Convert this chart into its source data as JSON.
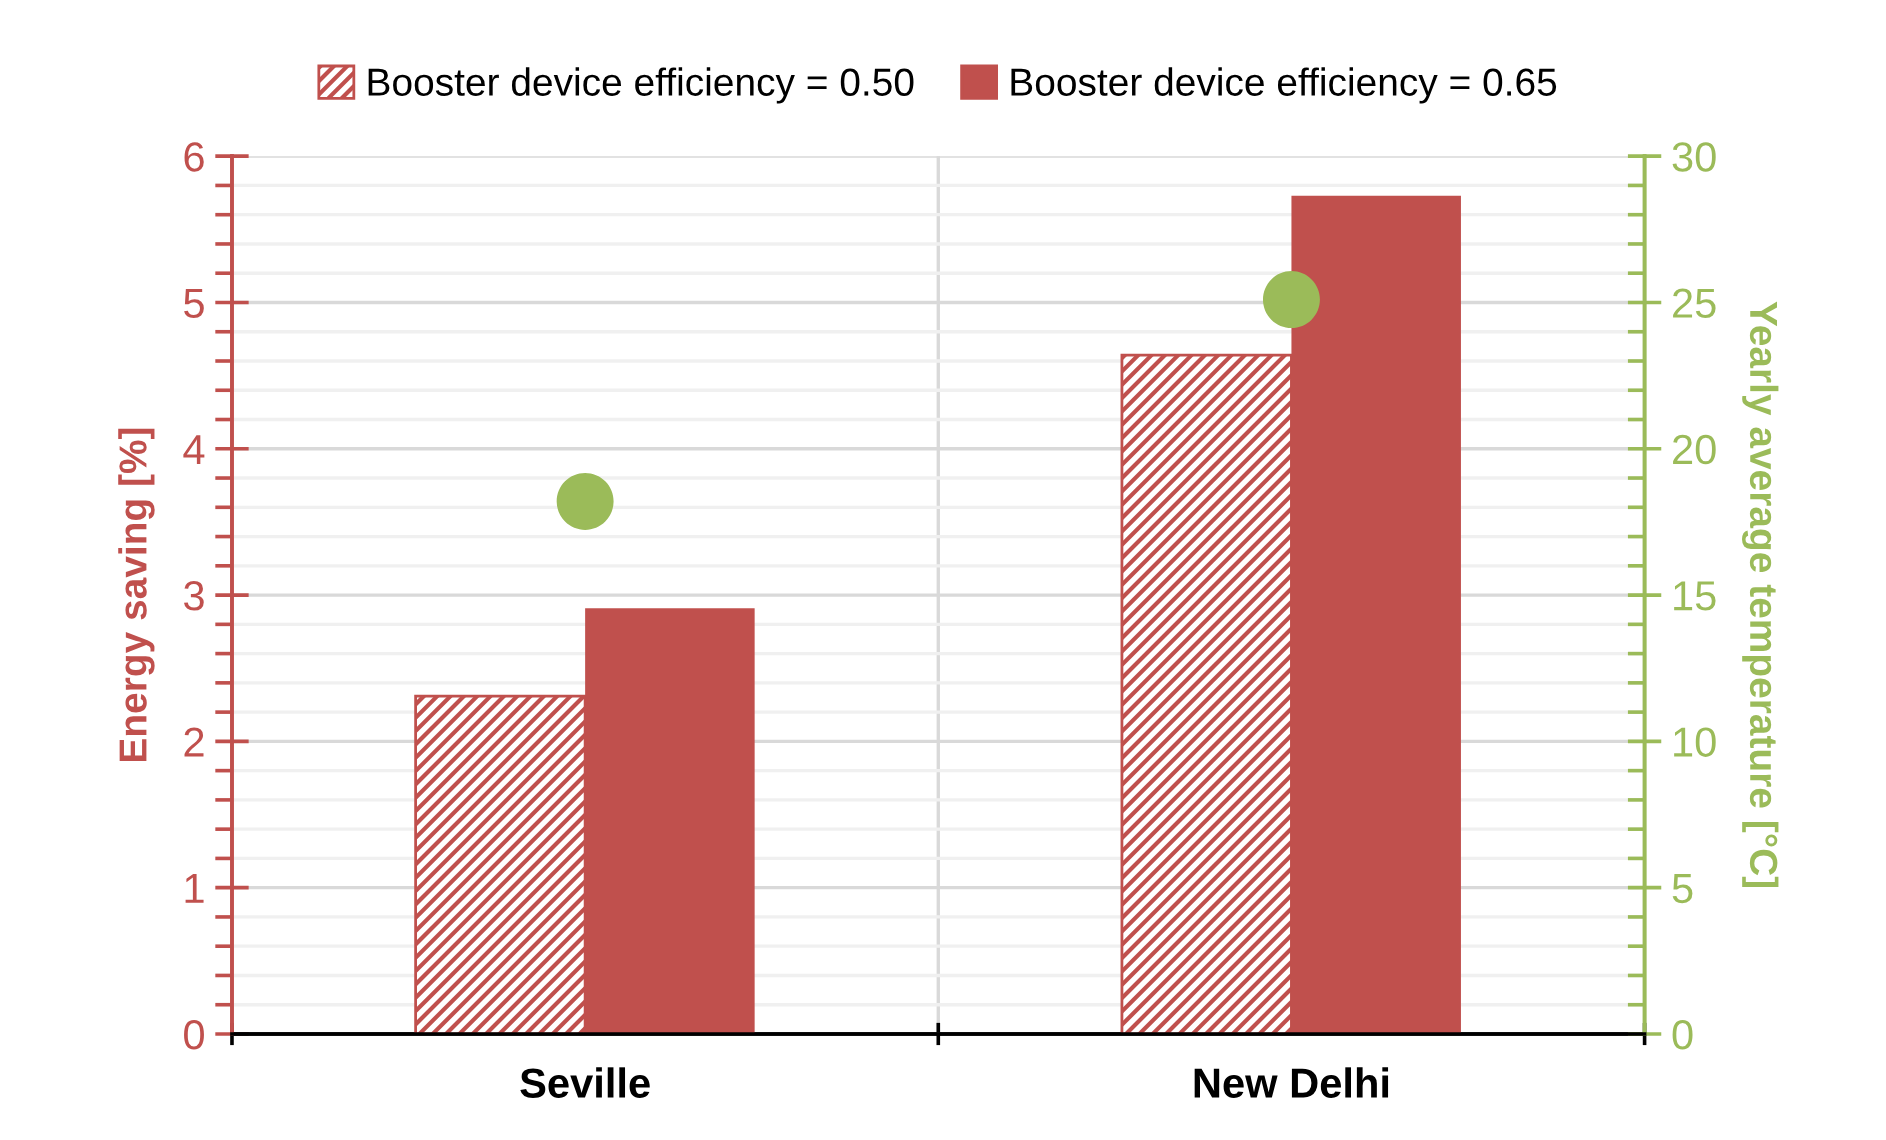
{
  "chart_data": {
    "type": "bar",
    "categories": [
      "Seville",
      "New Delhi"
    ],
    "series": [
      {
        "name": "Booster device efficiency = 0.50",
        "color": "#c0504d",
        "values": [
          2.31,
          4.64
        ]
      },
      {
        "name": "Booster device efficiency = 0.65",
        "color": "#c0504d",
        "values": [
          2.91,
          5.73
        ]
      },
      {
        "type": "scatter",
        "axis": "y2",
        "color": "#9bbb59",
        "values": [
          18.2,
          25.1
        ]
      }
    ],
    "ylabel": "Energy saving [%]",
    "y2label": "Yearly average temperature [°C]",
    "ylim": [
      0,
      6
    ],
    "yticks": [
      0,
      1,
      2,
      3,
      4,
      5,
      6
    ],
    "y2lim": [
      0,
      30
    ],
    "y2ticks": [
      0,
      5,
      10,
      15,
      20,
      25,
      30
    ],
    "grid": true,
    "legend": "top",
    "marker": "circle"
  }
}
